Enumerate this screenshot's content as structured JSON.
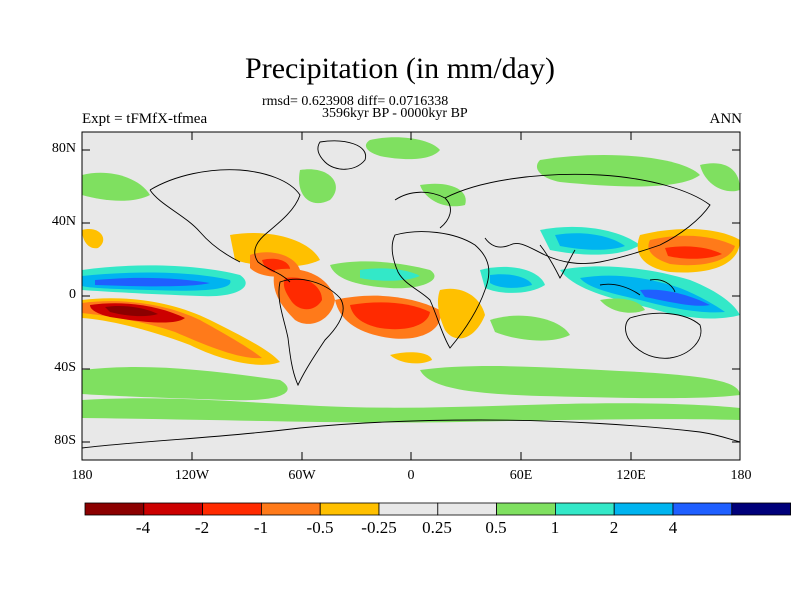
{
  "title": "Precipitation (in mm/day)",
  "stats_line": "rmsd= 0.623908 diff= 0.0716338",
  "period_line": "3596kyr BP - 0000kyr BP",
  "experiment_label": "Expt = tFMfX-tfmea",
  "season_label": "ANN",
  "lat_labels": [
    "80N",
    "40N",
    "0",
    "40S",
    "80S"
  ],
  "lon_labels": [
    "180",
    "120W",
    "60W",
    "0",
    "60E",
    "120E",
    "180"
  ],
  "colorbar": {
    "colors": [
      "#8b0000",
      "#cc0000",
      "#ff2a00",
      "#ff7a1a",
      "#ffc000",
      "#e8e8e8",
      "#e8e8e8",
      "#7fe060",
      "#33e8c8",
      "#00b4f0",
      "#1f5fff",
      "#00007a"
    ],
    "labels": [
      "-4",
      "-2",
      "-1",
      "-0.5",
      "-0.25",
      "0.25",
      "0.5",
      "1",
      "2",
      "4"
    ]
  }
}
